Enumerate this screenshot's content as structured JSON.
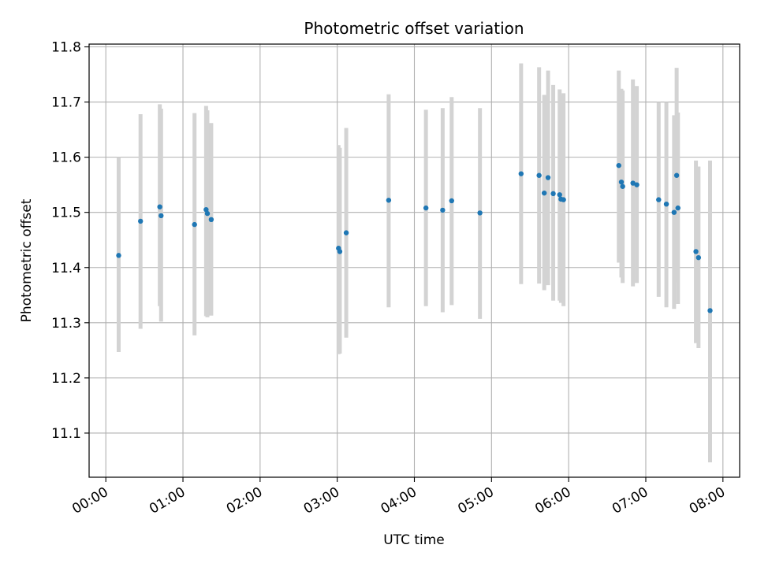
{
  "chart_data": {
    "type": "scatter",
    "title": "Photometric offset variation",
    "xlabel": "UTC time",
    "ylabel": "Photometric offset",
    "x_unit": "hours UTC",
    "xlim": [
      "-00:13",
      "08:13"
    ],
    "ylim": [
      11.02,
      11.805
    ],
    "x_ticks": [
      "00:00",
      "01:00",
      "02:00",
      "03:00",
      "04:00",
      "05:00",
      "06:00",
      "07:00",
      "08:00"
    ],
    "y_ticks": [
      "11.1",
      "11.2",
      "11.3",
      "11.4",
      "11.5",
      "11.6",
      "11.7",
      "11.8"
    ],
    "grid": true,
    "legend": "none",
    "colors": {
      "points": "#1f77b4",
      "errorbars": "#d3d3d3",
      "grid": "#b0b0b0"
    },
    "series": [
      {
        "points": [
          {
            "x": "00:10",
            "y": 11.422,
            "lo": 11.247,
            "hi": 11.6
          },
          {
            "x": "00:27",
            "y": 11.484,
            "lo": 11.289,
            "hi": 11.678
          },
          {
            "x": "00:42",
            "y": 11.51,
            "lo": 11.33,
            "hi": 11.696
          },
          {
            "x": "00:43",
            "y": 11.494,
            "lo": 11.302,
            "hi": 11.688
          },
          {
            "x": "01:09",
            "y": 11.478,
            "lo": 11.277,
            "hi": 11.68
          },
          {
            "x": "01:18",
            "y": 11.505,
            "lo": 11.312,
            "hi": 11.693
          },
          {
            "x": "01:19",
            "y": 11.498,
            "lo": 11.31,
            "hi": 11.685
          },
          {
            "x": "01:22",
            "y": 11.487,
            "lo": 11.313,
            "hi": 11.662
          },
          {
            "x": "03:01",
            "y": 11.435,
            "lo": 11.243,
            "hi": 11.622
          },
          {
            "x": "03:02",
            "y": 11.429,
            "lo": 11.244,
            "hi": 11.617
          },
          {
            "x": "03:07",
            "y": 11.463,
            "lo": 11.273,
            "hi": 11.653
          },
          {
            "x": "03:40",
            "y": 11.522,
            "lo": 11.328,
            "hi": 11.714
          },
          {
            "x": "04:09",
            "y": 11.508,
            "lo": 11.33,
            "hi": 11.686
          },
          {
            "x": "04:22",
            "y": 11.504,
            "lo": 11.319,
            "hi": 11.689
          },
          {
            "x": "04:29",
            "y": 11.521,
            "lo": 11.332,
            "hi": 11.709
          },
          {
            "x": "04:51",
            "y": 11.499,
            "lo": 11.307,
            "hi": 11.689
          },
          {
            "x": "05:23",
            "y": 11.57,
            "lo": 11.37,
            "hi": 11.77
          },
          {
            "x": "05:37",
            "y": 11.567,
            "lo": 11.371,
            "hi": 11.763
          },
          {
            "x": "05:41",
            "y": 11.535,
            "lo": 11.359,
            "hi": 11.713
          },
          {
            "x": "05:44",
            "y": 11.563,
            "lo": 11.368,
            "hi": 11.757
          },
          {
            "x": "05:48",
            "y": 11.534,
            "lo": 11.34,
            "hi": 11.731
          },
          {
            "x": "05:53",
            "y": 11.532,
            "lo": 11.34,
            "hi": 11.723
          },
          {
            "x": "05:54",
            "y": 11.524,
            "lo": 11.336,
            "hi": 11.712
          },
          {
            "x": "05:56",
            "y": 11.523,
            "lo": 11.33,
            "hi": 11.716
          },
          {
            "x": "06:39",
            "y": 11.585,
            "lo": 11.409,
            "hi": 11.757
          },
          {
            "x": "06:41",
            "y": 11.555,
            "lo": 11.382,
            "hi": 11.724
          },
          {
            "x": "06:42",
            "y": 11.547,
            "lo": 11.372,
            "hi": 11.721
          },
          {
            "x": "06:50",
            "y": 11.553,
            "lo": 11.366,
            "hi": 11.741
          },
          {
            "x": "06:53",
            "y": 11.55,
            "lo": 11.372,
            "hi": 11.729
          },
          {
            "x": "07:10",
            "y": 11.523,
            "lo": 11.347,
            "hi": 11.7
          },
          {
            "x": "07:16",
            "y": 11.515,
            "lo": 11.328,
            "hi": 11.7
          },
          {
            "x": "07:22",
            "y": 11.5,
            "lo": 11.325,
            "hi": 11.676
          },
          {
            "x": "07:24",
            "y": 11.567,
            "lo": 11.373,
            "hi": 11.762
          },
          {
            "x": "07:25",
            "y": 11.508,
            "lo": 11.334,
            "hi": 11.681
          },
          {
            "x": "07:39",
            "y": 11.429,
            "lo": 11.263,
            "hi": 11.594
          },
          {
            "x": "07:41",
            "y": 11.418,
            "lo": 11.254,
            "hi": 11.583
          },
          {
            "x": "07:50",
            "y": 11.322,
            "lo": 11.047,
            "hi": 11.594
          }
        ]
      }
    ]
  }
}
